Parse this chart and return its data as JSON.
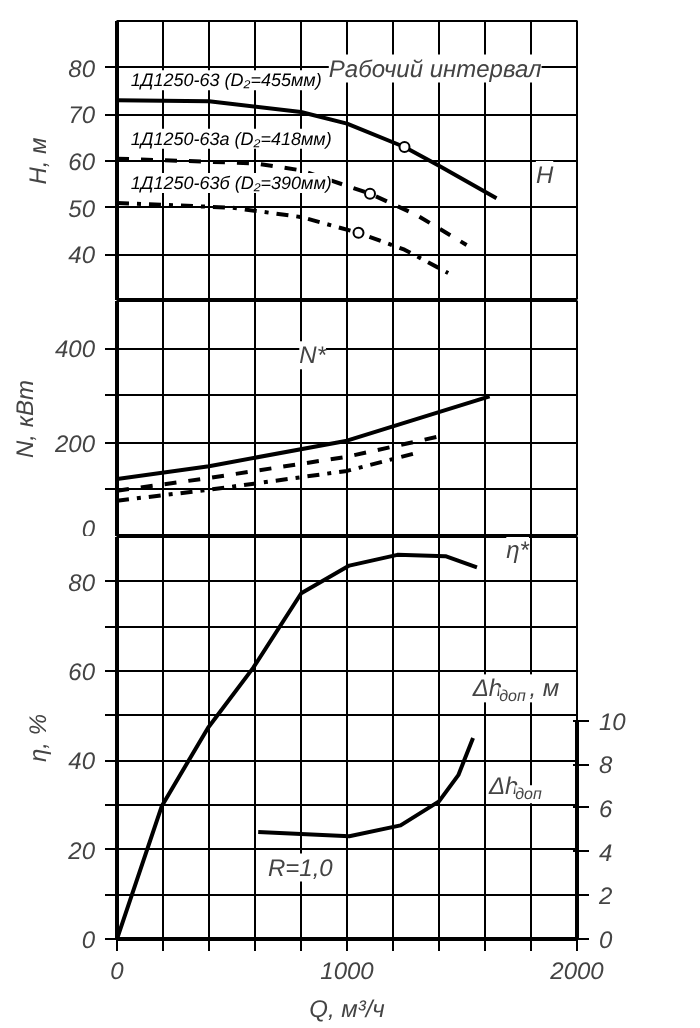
{
  "chart_data": [
    {
      "type": "line",
      "ylabel": "H, м",
      "xlim": [
        0,
        2000
      ],
      "ylim": [
        30,
        90
      ],
      "xticks": [
        0,
        {
          "value": 200,
          "label": null
        },
        {
          "value": 400,
          "label": null
        },
        {
          "value": 600,
          "label": null
        },
        {
          "value": 800,
          "label": null
        },
        {
          "value": 1000,
          "label": null
        },
        {
          "value": 1200,
          "label": null
        },
        {
          "value": 1400,
          "label": null
        },
        {
          "value": 1600,
          "label": null
        },
        {
          "value": 1800,
          "label": null
        },
        {
          "value": 2000,
          "label": null
        }
      ],
      "yticks": [
        40,
        50,
        60,
        70,
        80
      ],
      "grid": true,
      "tick_labels": "y",
      "series": [
        {
          "name": "1Д1250-63 (D₂=455мм)",
          "color": "#000000",
          "line_style": "solid",
          "x": [
            0,
            400,
            800,
            1000,
            1250,
            1400,
            1650
          ],
          "values": [
            73,
            72.8,
            70.5,
            68,
            63,
            59,
            52
          ]
        },
        {
          "name": "1Д1250-63а (D₂=418мм)",
          "color": "#000000",
          "line_style": "dashed",
          "x": [
            0,
            600,
            800,
            1100,
            1300,
            1520
          ],
          "values": [
            60.5,
            59.5,
            58,
            53,
            48.5,
            42
          ]
        },
        {
          "name": "1Д1250-63б (D₂=390мм)",
          "color": "#000000",
          "line_style": "dashdot",
          "x": [
            0,
            500,
            800,
            1050,
            1250,
            1440
          ],
          "values": [
            51,
            50,
            48,
            44.6,
            41,
            36
          ]
        },
        {
          "type": "scatter",
          "marker": "circle",
          "color": "#000000",
          "x": [
            1250,
            1100,
            1050
          ],
          "values": [
            63,
            53,
            44.6
          ]
        }
      ],
      "annotations": [
        "Рабочий интервал",
        {
          "text": "H",
          "x": 1850,
          "y": 57
        }
      ]
    },
    {
      "type": "line",
      "ylabel": "N, кВт",
      "xlim": [
        0,
        2000
      ],
      "ylim": [
        0,
        500
      ],
      "xticks": [
        0,
        {
          "value": 200,
          "label": null
        },
        {
          "value": 400,
          "label": null
        },
        {
          "value": 600,
          "label": null
        },
        {
          "value": 800,
          "label": null
        },
        {
          "value": 1000,
          "label": null
        },
        {
          "value": 1200,
          "label": null
        },
        {
          "value": 1400,
          "label": null
        },
        {
          "value": 1600,
          "label": null
        },
        {
          "value": 1800,
          "label": null
        },
        {
          "value": 2000,
          "label": null
        }
      ],
      "yticks": [
        0,
        {
          "value": 100,
          "label": null
        },
        200,
        {
          "value": 300,
          "label": null
        },
        400
      ],
      "grid": true,
      "tick_labels": "y",
      "series": [
        {
          "color": "#000000",
          "line_style": "solid",
          "x": [
            0,
            400,
            1000,
            1620
          ],
          "values": [
            123,
            150,
            204,
            298
          ]
        },
        {
          "color": "#000000",
          "line_style": "dashed",
          "x": [
            0,
            400,
            1000,
            1400
          ],
          "values": [
            98,
            125,
            170,
            213
          ]
        },
        {
          "color": "#000000",
          "line_style": "dashdot",
          "x": [
            0,
            400,
            1000,
            1310
          ],
          "values": [
            77,
            100,
            140,
            179
          ]
        }
      ],
      "annotations": [
        {
          "text": "N*",
          "x": 850,
          "y": 385
        }
      ]
    },
    {
      "type": "line",
      "xlabel": "Q, м³/ч",
      "ylabel": "η, %",
      "y2label": "Δh$_{доп}$, м",
      "xlim": [
        0,
        2000
      ],
      "ylim": [
        0,
        90
      ],
      "y2lim": [
        0,
        18.4
      ],
      "xticks": [
        0,
        {
          "value": 200,
          "label": null
        },
        {
          "value": 400,
          "label": null
        },
        {
          "value": 600,
          "label": null
        },
        {
          "value": 800,
          "label": null
        },
        1000,
        {
          "value": 1200,
          "label": null
        },
        {
          "value": 1400,
          "label": null
        },
        {
          "value": 1600,
          "label": null
        },
        {
          "value": 1800,
          "label": null
        },
        2000
      ],
      "yticks": [
        0,
        {
          "value": 10,
          "label": null
        },
        20,
        {
          "value": 30,
          "label": null
        },
        40,
        {
          "value": 50,
          "label": null
        },
        60,
        {
          "value": 70,
          "label": null
        },
        80
      ],
      "y2ticks": [
        0,
        2,
        4,
        6,
        8,
        10
      ],
      "grid": true,
      "series": [
        {
          "color": "#000000",
          "line_style": "solid",
          "x": [
            0,
            195,
            396,
            592,
            801,
            1010,
            1219,
            1428,
            1565
          ],
          "values": [
            0,
            29.8,
            47.3,
            60.7,
            77.4,
            83.6,
            86,
            85.7,
            83.2
          ]
        },
        {
          "color": "#000000",
          "line_style": "solid",
          "axis": "y2",
          "x": [
            614,
            1010,
            1233,
            1400,
            1484,
            1548
          ],
          "values": [
            4.9,
            4.7,
            5.2,
            6.3,
            7.5,
            9.2
          ]
        }
      ],
      "annotations": [
        {
          "text": "η*",
          "x": 1750,
          "y": 87
        },
        "Δh$_{доп}$",
        {
          "text": "R=1,0",
          "x": 800,
          "y": 16
        }
      ]
    }
  ]
}
